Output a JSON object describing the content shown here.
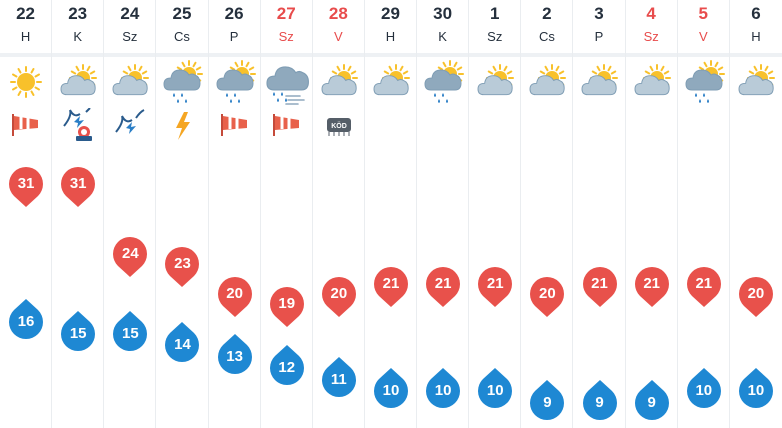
{
  "days": [
    {
      "num": "22",
      "name": "H",
      "weekend": false,
      "weather": "sun-icon",
      "warning": "windsock-icon",
      "max": "31",
      "min": "16"
    },
    {
      "num": "23",
      "name": "K",
      "weekend": false,
      "weather": "partly-cloudy-icon",
      "warning": "thunderstorm-warning-icon",
      "max": "31",
      "min": "15"
    },
    {
      "num": "24",
      "name": "Sz",
      "weekend": false,
      "weather": "partly-cloudy-icon",
      "warning": "lightning-warning-icon",
      "max": "24",
      "min": "15"
    },
    {
      "num": "25",
      "name": "Cs",
      "weekend": false,
      "weather": "partly-cloudy-rain-icon",
      "warning": "lightning-icon",
      "max": "23",
      "min": "14"
    },
    {
      "num": "26",
      "name": "P",
      "weekend": false,
      "weather": "partly-cloudy-rain-icon",
      "warning": "windsock-icon",
      "max": "20",
      "min": "13"
    },
    {
      "num": "27",
      "name": "Sz",
      "weekend": true,
      "weather": "cloud-rain-wind-icon",
      "warning": "windsock-icon",
      "max": "19",
      "min": "12"
    },
    {
      "num": "28",
      "name": "V",
      "weekend": true,
      "weather": "partly-cloudy-icon",
      "warning": "fog-icon",
      "max": "20",
      "min": "11"
    },
    {
      "num": "29",
      "name": "H",
      "weekend": false,
      "weather": "partly-cloudy-icon",
      "warning": "",
      "max": "21",
      "min": "10"
    },
    {
      "num": "30",
      "name": "K",
      "weekend": false,
      "weather": "partly-cloudy-rain-icon",
      "warning": "",
      "max": "21",
      "min": "10"
    },
    {
      "num": "1",
      "name": "Sz",
      "weekend": false,
      "weather": "partly-cloudy-icon",
      "warning": "",
      "max": "21",
      "min": "10"
    },
    {
      "num": "2",
      "name": "Cs",
      "weekend": false,
      "weather": "partly-cloudy-icon",
      "warning": "",
      "max": "20",
      "min": "9"
    },
    {
      "num": "3",
      "name": "P",
      "weekend": false,
      "weather": "partly-cloudy-icon",
      "warning": "",
      "max": "21",
      "min": "9"
    },
    {
      "num": "4",
      "name": "Sz",
      "weekend": true,
      "weather": "partly-cloudy-icon",
      "warning": "",
      "max": "21",
      "min": "9"
    },
    {
      "num": "5",
      "name": "V",
      "weekend": true,
      "weather": "partly-cloudy-rain-icon",
      "warning": "",
      "max": "21",
      "min": "10"
    },
    {
      "num": "6",
      "name": "H",
      "weekend": false,
      "weather": "partly-cloudy-icon",
      "warning": "",
      "max": "20",
      "min": "10"
    }
  ],
  "fog_label": "KÖD",
  "colors": {
    "max_marker": "#e8514b",
    "min_marker": "#1e88d3",
    "weekend_text": "#e84c4c",
    "sun": "#f8c12b",
    "cloud": "#9fb7c9",
    "rain": "#2a7ec6",
    "windsock": "#e8614b"
  }
}
